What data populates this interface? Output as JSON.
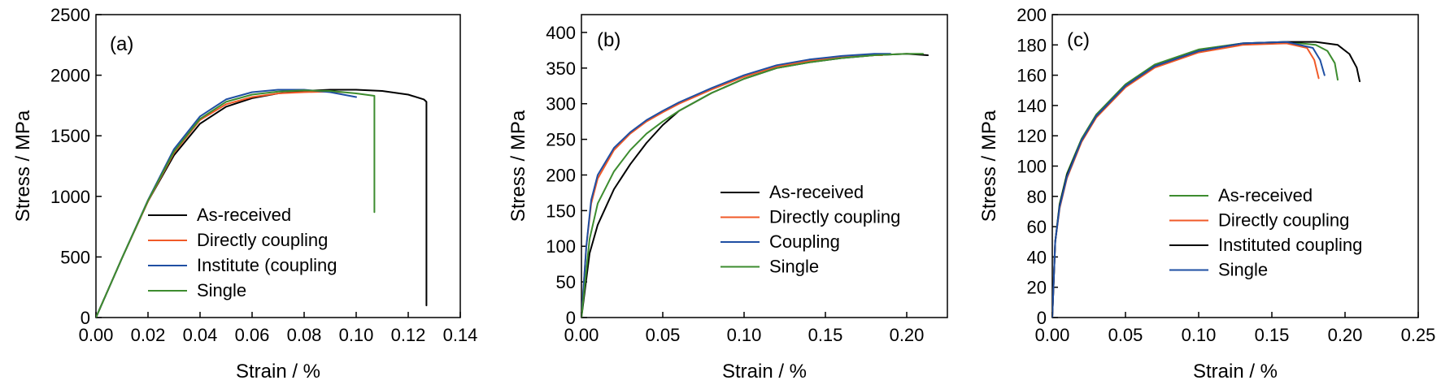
{
  "chart_data": [
    {
      "type": "line",
      "panel_label": "(a)",
      "xlabel": "Strain / %",
      "ylabel": "Stress / MPa",
      "xlim": [
        0,
        0.14
      ],
      "ylim": [
        0,
        2500
      ],
      "xticks": [
        "0.00",
        "0.02",
        "0.04",
        "0.06",
        "0.08",
        "0.10",
        "0.12",
        "0.14"
      ],
      "yticks": [
        "0",
        "500",
        "1000",
        "1500",
        "2000",
        "2500"
      ],
      "legend_position": "bottom-center",
      "series": [
        {
          "name": "As-received",
          "color": "#000000",
          "x": [
            0,
            0.01,
            0.02,
            0.03,
            0.04,
            0.05,
            0.06,
            0.07,
            0.08,
            0.09,
            0.1,
            0.11,
            0.12,
            0.126,
            0.127,
            0.127
          ],
          "y": [
            0,
            490,
            960,
            1340,
            1600,
            1740,
            1810,
            1850,
            1870,
            1880,
            1880,
            1870,
            1840,
            1800,
            1780,
            100
          ]
        },
        {
          "name": "Directly coupling",
          "color": "#f05a28",
          "x": [
            0,
            0.01,
            0.02,
            0.03,
            0.04,
            0.05,
            0.06,
            0.07,
            0.08,
            0.09,
            0.095
          ],
          "y": [
            0,
            490,
            960,
            1360,
            1630,
            1760,
            1820,
            1850,
            1860,
            1865,
            1860
          ]
        },
        {
          "name": "Institute (coupling",
          "color": "#1f4fa3",
          "x": [
            0,
            0.01,
            0.02,
            0.03,
            0.04,
            0.05,
            0.06,
            0.07,
            0.08,
            0.09,
            0.1
          ],
          "y": [
            0,
            490,
            970,
            1390,
            1660,
            1800,
            1860,
            1880,
            1880,
            1860,
            1820
          ]
        },
        {
          "name": "Single",
          "color": "#3d8c2f",
          "x": [
            0,
            0.01,
            0.02,
            0.03,
            0.04,
            0.05,
            0.06,
            0.07,
            0.08,
            0.09,
            0.1,
            0.107,
            0.107
          ],
          "y": [
            0,
            490,
            965,
            1370,
            1640,
            1780,
            1840,
            1865,
            1875,
            1870,
            1850,
            1830,
            870
          ]
        }
      ]
    },
    {
      "type": "line",
      "panel_label": "(b)",
      "xlabel": "Strain / %",
      "ylabel": "Stress / MPa",
      "xlim": [
        0,
        0.225
      ],
      "ylim": [
        0,
        425
      ],
      "xticks": [
        "0.00",
        "0.05",
        "0.10",
        "0.15",
        "0.20"
      ],
      "xtick_values": [
        0,
        0.05,
        0.1,
        0.15,
        0.2
      ],
      "yticks": [
        "0",
        "50",
        "100",
        "150",
        "200",
        "250",
        "300",
        "350",
        "400"
      ],
      "legend_position": "bottom-right",
      "series": [
        {
          "name": "As-received",
          "color": "#000000",
          "x": [
            0,
            0.005,
            0.01,
            0.02,
            0.03,
            0.04,
            0.05,
            0.06,
            0.08,
            0.1,
            0.12,
            0.14,
            0.16,
            0.18,
            0.2,
            0.213
          ],
          "y": [
            0,
            90,
            130,
            180,
            215,
            245,
            270,
            290,
            315,
            335,
            350,
            358,
            364,
            368,
            370,
            368
          ]
        },
        {
          "name": "Directly coupling",
          "color": "#f05a28",
          "x": [
            0,
            0.003,
            0.006,
            0.01,
            0.02,
            0.03,
            0.04,
            0.05,
            0.06,
            0.08,
            0.1,
            0.12,
            0.14,
            0.16,
            0.18,
            0.185
          ],
          "y": [
            0,
            100,
            160,
            195,
            235,
            258,
            275,
            288,
            300,
            320,
            338,
            352,
            360,
            365,
            368,
            368
          ]
        },
        {
          "name": "Coupling",
          "color": "#1f4fa3",
          "x": [
            0,
            0.003,
            0.006,
            0.01,
            0.02,
            0.03,
            0.04,
            0.05,
            0.06,
            0.08,
            0.1,
            0.12,
            0.14,
            0.16,
            0.18,
            0.19
          ],
          "y": [
            0,
            100,
            165,
            200,
            238,
            260,
            277,
            290,
            302,
            322,
            340,
            354,
            362,
            367,
            370,
            370
          ]
        },
        {
          "name": "Single",
          "color": "#3d8c2f",
          "x": [
            0,
            0.005,
            0.01,
            0.02,
            0.03,
            0.04,
            0.05,
            0.06,
            0.08,
            0.1,
            0.12,
            0.14,
            0.16,
            0.18,
            0.2,
            0.21
          ],
          "y": [
            0,
            110,
            160,
            205,
            235,
            258,
            275,
            290,
            315,
            335,
            350,
            358,
            364,
            368,
            370,
            370
          ]
        }
      ]
    },
    {
      "type": "line",
      "panel_label": "(c)",
      "xlabel": "Strain / %",
      "ylabel": "Stress / MPa",
      "xlim": [
        0,
        0.25
      ],
      "ylim": [
        0,
        200
      ],
      "xticks": [
        "0.00",
        "0.05",
        "0.10",
        "0.15",
        "0.20",
        "0.25"
      ],
      "xtick_values": [
        0,
        0.05,
        0.1,
        0.15,
        0.2,
        0.25
      ],
      "yticks": [
        "0",
        "20",
        "40",
        "60",
        "80",
        "100",
        "120",
        "140",
        "160",
        "180",
        "200"
      ],
      "legend_position": "bottom-right",
      "series": [
        {
          "name": "As-received",
          "color": "#3d8c2f",
          "x": [
            0,
            0.002,
            0.005,
            0.01,
            0.02,
            0.03,
            0.05,
            0.07,
            0.1,
            0.13,
            0.16,
            0.18,
            0.188,
            0.193,
            0.195
          ],
          "y": [
            0,
            50,
            75,
            95,
            118,
            134,
            154,
            167,
            177,
            181,
            182,
            180,
            176,
            168,
            157
          ]
        },
        {
          "name": "Directly coupling",
          "color": "#f05a28",
          "x": [
            0,
            0.002,
            0.005,
            0.01,
            0.02,
            0.03,
            0.05,
            0.07,
            0.1,
            0.13,
            0.16,
            0.174,
            0.179,
            0.182
          ],
          "y": [
            0,
            50,
            72,
            92,
            116,
            132,
            152,
            165,
            175,
            180,
            181,
            178,
            170,
            158
          ]
        },
        {
          "name": "Instituted coupling",
          "color": "#000000",
          "x": [
            0,
            0.002,
            0.005,
            0.01,
            0.02,
            0.03,
            0.05,
            0.07,
            0.1,
            0.13,
            0.16,
            0.18,
            0.195,
            0.203,
            0.208,
            0.21
          ],
          "y": [
            0,
            50,
            74,
            94,
            117,
            133,
            153,
            166,
            176,
            181,
            182,
            182,
            180,
            174,
            165,
            156
          ]
        },
        {
          "name": "Single",
          "color": "#1f4fa3",
          "x": [
            0,
            0.002,
            0.005,
            0.01,
            0.02,
            0.03,
            0.05,
            0.07,
            0.1,
            0.13,
            0.16,
            0.178,
            0.183,
            0.186
          ],
          "y": [
            0,
            50,
            73,
            93,
            117,
            133,
            153,
            166,
            176,
            181,
            182,
            178,
            170,
            160
          ]
        }
      ]
    }
  ]
}
